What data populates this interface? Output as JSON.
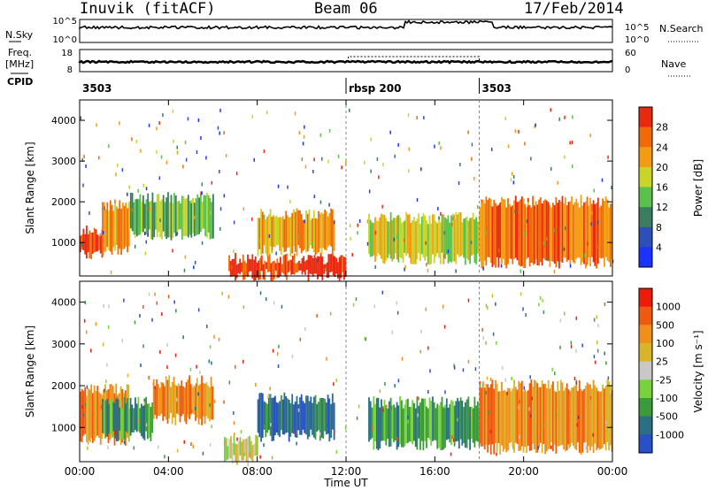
{
  "header": {
    "station": "Inuvik (fitACF)",
    "beam": "Beam 06",
    "date": "17/Feb/2014"
  },
  "summary": {
    "nsky_label": "N.Sky",
    "nsearch_label": "N.Search",
    "freq_label": "Freq.",
    "freq_unit": "[MHz]",
    "nave_label": "Nave",
    "cpid_label": "CPID",
    "ns_ticks": [
      "10^5",
      "10^0"
    ],
    "ns_ticks_right": [
      "10^5",
      "10^0"
    ],
    "freq_ticks": [
      "18",
      "8"
    ],
    "nave_ticks": [
      "60",
      "0"
    ],
    "cpid_segments": [
      {
        "label": "3503",
        "start": 0,
        "end": 12
      },
      {
        "label": "rbsp  200",
        "start": 12,
        "end": 18
      },
      {
        "label": "3503",
        "start": 18,
        "end": 24
      }
    ]
  },
  "colors": {
    "power": [
      "#1a33ff",
      "#2d4fb8",
      "#3a7d5f",
      "#58c24a",
      "#c8d42a",
      "#f39b12",
      "#f06a0a",
      "#ea2a10"
    ],
    "velocity": [
      "#2850c8",
      "#2a6f84",
      "#3b9a3a",
      "#78d23c",
      "#c8c8c8",
      "#d7b42a",
      "#f0901a",
      "#ee5a10",
      "#ee1a0a"
    ]
  },
  "chart_data": [
    {
      "type": "heatmap",
      "panel": "power",
      "ylabel": "Slant Range [km]",
      "xlim": [
        0,
        24
      ],
      "ylim": [
        180,
        4500
      ],
      "yticks": [
        "1000",
        "2000",
        "3000",
        "4000"
      ],
      "colorbar_label": "Power [dB]",
      "colorbar_ticks": [
        "4",
        "8",
        "12",
        "16",
        "20",
        "24",
        "28"
      ],
      "features": [
        {
          "t0": 0.0,
          "t1": 1.0,
          "r0": 700,
          "r1": 1300,
          "level": 7
        },
        {
          "t0": 1.0,
          "t1": 2.2,
          "r0": 800,
          "r1": 1900,
          "level": 5
        },
        {
          "t0": 2.2,
          "t1": 6.0,
          "r0": 1200,
          "r1": 2100,
          "level": 3
        },
        {
          "t0": 6.7,
          "t1": 12.0,
          "r0": 200,
          "r1": 600,
          "level": 7
        },
        {
          "t0": 8.0,
          "t1": 11.5,
          "r0": 800,
          "r1": 1700,
          "level": 5
        },
        {
          "t0": 13.0,
          "t1": 18.0,
          "r0": 600,
          "r1": 1600,
          "level": 4
        },
        {
          "t0": 18.0,
          "t1": 24.0,
          "r0": 500,
          "r1": 2000,
          "level": 6
        }
      ]
    },
    {
      "type": "heatmap",
      "panel": "velocity",
      "ylabel": "Slant Range [km]",
      "xlabel": "Time UT",
      "xlim": [
        0,
        24
      ],
      "ylim": [
        180,
        4500
      ],
      "yticks": [
        "1000",
        "2000",
        "3000",
        "4000"
      ],
      "xticks": [
        "00:00",
        "04:00",
        "08:00",
        "12:00",
        "16:00",
        "20:00",
        "00:00"
      ],
      "colorbar_label": "Velocity [m s⁻¹]",
      "colorbar_ticks": [
        "1000",
        "500",
        "100",
        "25",
        "-25",
        "-100",
        "-500",
        "-1000"
      ],
      "features": [
        {
          "t0": 0.0,
          "t1": 2.2,
          "r0": 700,
          "r1": 1900,
          "level": 6
        },
        {
          "t0": 1.0,
          "t1": 3.3,
          "r0": 800,
          "r1": 1600,
          "level": 2
        },
        {
          "t0": 3.3,
          "t1": 6.0,
          "r0": 1200,
          "r1": 2100,
          "level": 6
        },
        {
          "t0": 6.5,
          "t1": 8.0,
          "r0": 200,
          "r1": 700,
          "level": 4
        },
        {
          "t0": 8.0,
          "t1": 11.5,
          "r0": 800,
          "r1": 1700,
          "level": 1
        },
        {
          "t0": 13.0,
          "t1": 18.0,
          "r0": 600,
          "r1": 1600,
          "level": 2
        },
        {
          "t0": 18.0,
          "t1": 24.0,
          "r0": 500,
          "r1": 2000,
          "level": 6
        }
      ]
    }
  ]
}
